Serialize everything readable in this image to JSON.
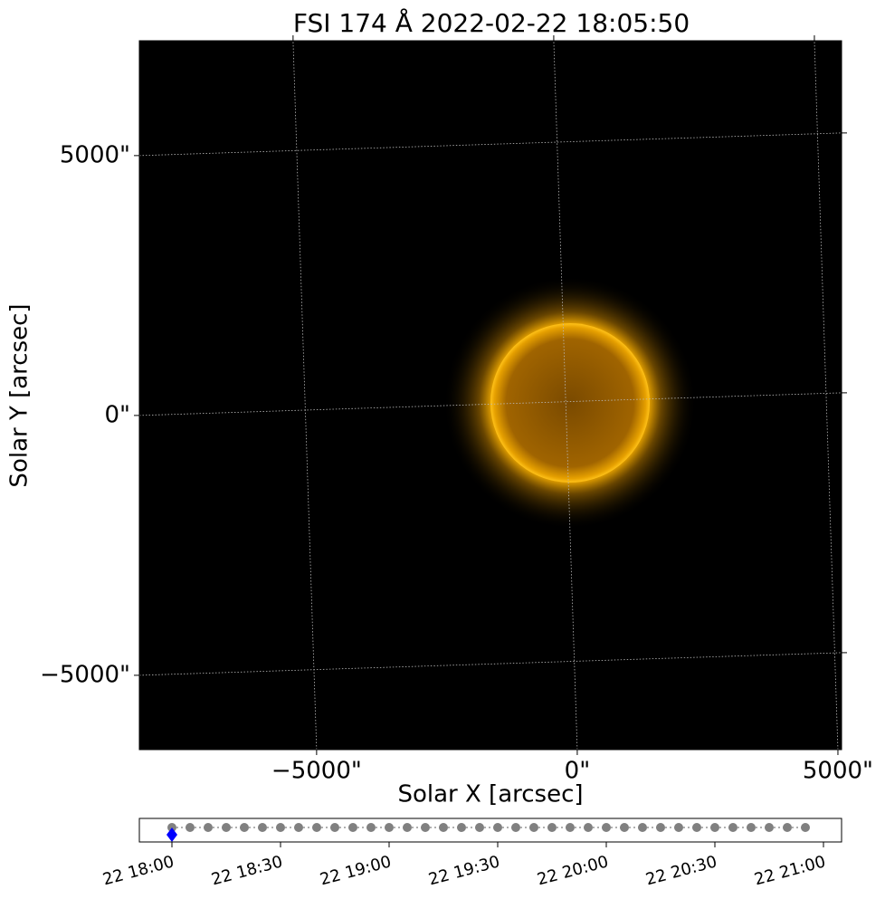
{
  "chart_data": [
    {
      "type": "image",
      "title": "FSI 174 Å 2022-02-22 18:05:50",
      "xlabel": "Solar X [arcsec]",
      "ylabel": "Solar Y [arcsec]",
      "xlim": [
        -8400,
        5070
      ],
      "ylim": [
        -6430,
        7210
      ],
      "xticks": [
        {
          "value": -5000,
          "label": "−5000\""
        },
        {
          "value": 0,
          "label": "0\""
        },
        {
          "value": 5000,
          "label": "5000\""
        }
      ],
      "yticks": [
        {
          "value": -5000,
          "label": "−5000\""
        },
        {
          "value": 0,
          "label": "0\""
        },
        {
          "value": 5000,
          "label": "5000\""
        }
      ],
      "grid": true
    },
    {
      "type": "timeline",
      "x": [
        "22 18:00",
        "22 18:05",
        "22 18:10",
        "22 18:15",
        "22 18:20",
        "22 18:25",
        "22 18:30",
        "22 18:35",
        "22 18:40",
        "22 18:45",
        "22 18:50",
        "22 18:55",
        "22 19:00",
        "22 19:05",
        "22 19:10",
        "22 19:15",
        "22 19:20",
        "22 19:25",
        "22 19:30",
        "22 19:35",
        "22 19:40",
        "22 19:45",
        "22 19:50",
        "22 19:55",
        "22 20:00",
        "22 20:05",
        "22 20:10",
        "22 20:15",
        "22 20:20",
        "22 20:25",
        "22 20:30",
        "22 20:35",
        "22 20:40",
        "22 20:45",
        "22 20:50",
        "22 20:55"
      ],
      "xlim": [
        "22 17:51",
        "22 21:05"
      ],
      "xticks": [
        "22 18:00",
        "22 18:30",
        "22 19:00",
        "22 19:30",
        "22 20:00",
        "22 20:30",
        "22 21:00"
      ],
      "color": "#808080",
      "selected": 0,
      "selected_color": "#0000ff"
    }
  ]
}
